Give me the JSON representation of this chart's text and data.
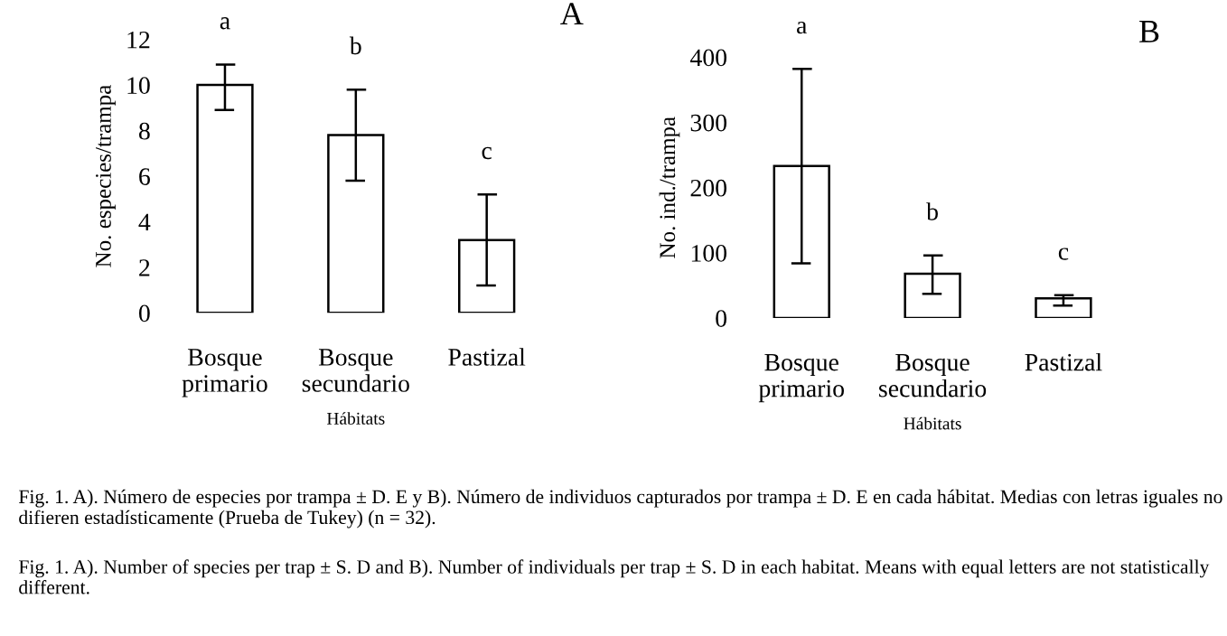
{
  "chart_data": [
    {
      "type": "bar",
      "title": "A",
      "xlabel": "Hábitats",
      "ylabel": "No. especies/trampa",
      "categories": [
        "Bosque\nprimario",
        "Bosque\nsecundario",
        "Pastizal"
      ],
      "values": [
        10,
        7.8,
        3.2
      ],
      "errors": [
        [
          8.9,
          10.9
        ],
        [
          5.8,
          9.8
        ],
        [
          1.2,
          5.2
        ]
      ],
      "color": "#ffffff",
      "ylim": [
        0,
        12
      ],
      "yticks": [
        0,
        2,
        4,
        6,
        8,
        10,
        12
      ],
      "grid": false,
      "annotations": [
        "a",
        "b",
        "c",
        "Fig. 1. A). Número de especies por trampa ± D. E y B). Número de individuos capturados por trampa ± D. E en cada hábitat. Medias con letras iguales no difieren estadísticamente (Prueba de Tukey) (n = 32).",
        "Fig. 1. A). Number of species per trap ± S. D and B). Number of individuals per trap ± S. D in each habitat. Means with equal letters are not statistically different."
      ]
    },
    {
      "type": "bar",
      "title": "B",
      "xlabel": "Hábitats",
      "ylabel": "No. ind./trampa",
      "categories": [
        "Bosque\nprimario",
        "Bosque\nsecundario",
        "Pastizal"
      ],
      "values": [
        233,
        68,
        30
      ],
      "errors": [
        [
          84,
          382
        ],
        [
          37,
          96
        ],
        [
          19,
          35
        ]
      ],
      "color": "#ffffff",
      "ylim": [
        0,
        400
      ],
      "yticks": [
        0,
        100,
        200,
        300,
        400
      ],
      "grid": false,
      "annotations": [
        "a",
        "b",
        "c"
      ]
    }
  ]
}
